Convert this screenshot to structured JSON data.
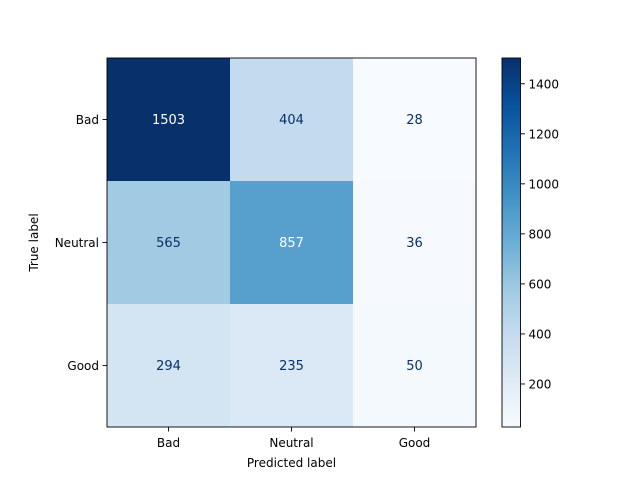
{
  "chart_data": {
    "type": "heatmap",
    "title": "",
    "xlabel": "Predicted label",
    "ylabel": "True label",
    "x_categories": [
      "Bad",
      "Neutral",
      "Good"
    ],
    "y_categories": [
      "Bad",
      "Neutral",
      "Good"
    ],
    "values": [
      [
        1503,
        404,
        28
      ],
      [
        565,
        857,
        36
      ],
      [
        294,
        235,
        50
      ]
    ],
    "colormap": "Blues",
    "colorbar": {
      "range": [
        28,
        1503
      ],
      "ticks": [
        200,
        400,
        600,
        800,
        1000,
        1200,
        1400
      ]
    },
    "text_color_dark": "#08306b",
    "text_color_light": "#ffffff"
  }
}
